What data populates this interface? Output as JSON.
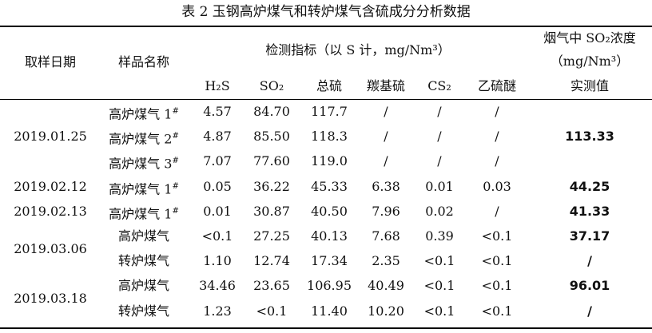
{
  "title": "表 2 玉钢高炉煤气和转炉煤气含硫成分分析数据",
  "header": {
    "date": "取样日期",
    "name": "样品名称",
    "indicators": "检测指标（以 S 计，mg/Nm³）",
    "flue_title": "烟气中 SO₂浓度",
    "flue_unit": "（mg/Nm³）",
    "flue_sub": "实测值",
    "columns": [
      "H₂S",
      "SO₂",
      "总硫",
      "羰基硫",
      "CS₂",
      "乙硫醚"
    ]
  },
  "groups": [
    {
      "date": "2019.01.25",
      "measured": "113.33",
      "rows": [
        {
          "name": "高炉煤气 1",
          "sup": "#",
          "values": [
            "4.57",
            "84.70",
            "117.7",
            "/",
            "/",
            "/"
          ]
        },
        {
          "name": "高炉煤气 2",
          "sup": "#",
          "values": [
            "4.87",
            "85.50",
            "118.3",
            "/",
            "/",
            "/"
          ]
        },
        {
          "name": "高炉煤气 3",
          "sup": "#",
          "values": [
            "7.07",
            "77.60",
            "119.0",
            "/",
            "/",
            "/"
          ]
        }
      ]
    },
    {
      "date": "2019.02.12",
      "measured": "44.25",
      "rows": [
        {
          "name": "高炉煤气 1",
          "sup": "#",
          "values": [
            "0.05",
            "36.22",
            "45.33",
            "6.38",
            "0.01",
            "0.03"
          ]
        }
      ]
    },
    {
      "date": "2019.02.13",
      "measured": "41.33",
      "rows": [
        {
          "name": "高炉煤气 1",
          "sup": "#",
          "values": [
            "0.01",
            "30.87",
            "40.50",
            "7.96",
            "0.02",
            "/"
          ]
        }
      ]
    },
    {
      "date": "2019.03.06",
      "rows": [
        {
          "name": "高炉煤气",
          "measured": "37.17",
          "values": [
            "<0.1",
            "27.25",
            "40.13",
            "7.68",
            "0.39",
            "<0.1"
          ]
        },
        {
          "name": "转炉煤气",
          "measured": "/",
          "values": [
            "1.10",
            "12.74",
            "17.34",
            "2.35",
            "<0.1",
            "<0.1"
          ]
        }
      ]
    },
    {
      "date": "2019.03.18",
      "rows": [
        {
          "name": "高炉煤气",
          "measured": "96.01",
          "values": [
            "34.46",
            "23.65",
            "106.95",
            "40.49",
            "<0.1",
            "<0.1"
          ]
        },
        {
          "name": "转炉煤气",
          "measured": "/",
          "values": [
            "1.23",
            "<0.1",
            "11.40",
            "10.20",
            "<0.1",
            "<0.1"
          ]
        }
      ]
    }
  ]
}
